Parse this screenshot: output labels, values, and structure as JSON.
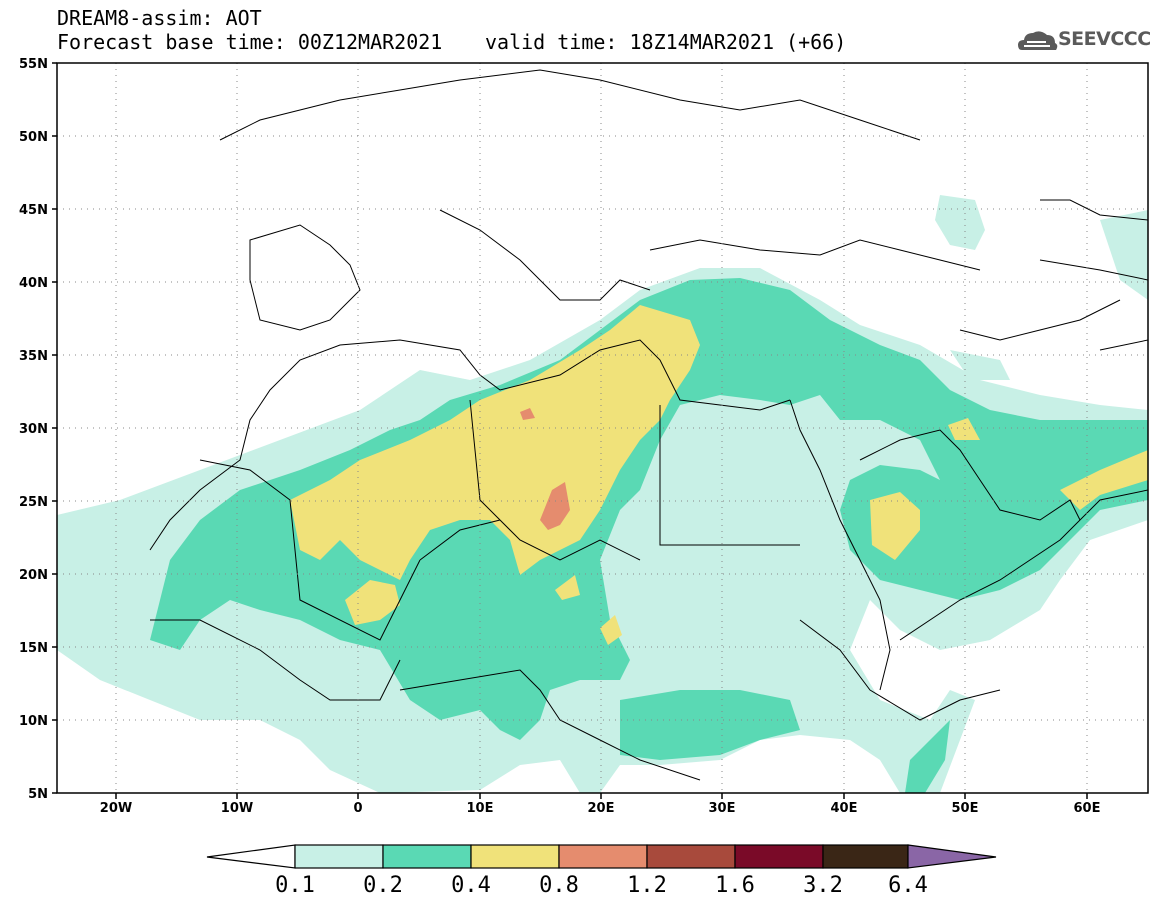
{
  "header": {
    "model_line": "DREAM8-assim: AOT",
    "base_time": "Forecast base time: 00Z12MAR2021",
    "valid_time": "valid time: 18Z14MAR2021 (+66)"
  },
  "logo": {
    "text": "SEEVCCC",
    "icon": "cloud-icon"
  },
  "map": {
    "lon_range": [
      -25,
      65
    ],
    "lat_range": [
      5,
      55
    ],
    "lat_labels": [
      "55N",
      "50N",
      "45N",
      "40N",
      "35N",
      "30N",
      "25N",
      "20N",
      "15N",
      "10N",
      "5N"
    ],
    "lon_labels": [
      "20W",
      "10W",
      "0",
      "10E",
      "20E",
      "30E",
      "40E",
      "50E",
      "60E"
    ],
    "grid": true
  },
  "colorbar": {
    "levels": [
      "0.1",
      "0.2",
      "0.4",
      "0.8",
      "1.2",
      "1.6",
      "3.2",
      "6.4"
    ],
    "colors": [
      "#c8f0e6",
      "#5ad9b4",
      "#f0e27a",
      "#e58c6e",
      "#a84a3c",
      "#7a0a28",
      "#3a2616",
      "#8a66a6"
    ],
    "under_color": "#ffffff",
    "over_color": "#8a66a6"
  }
}
